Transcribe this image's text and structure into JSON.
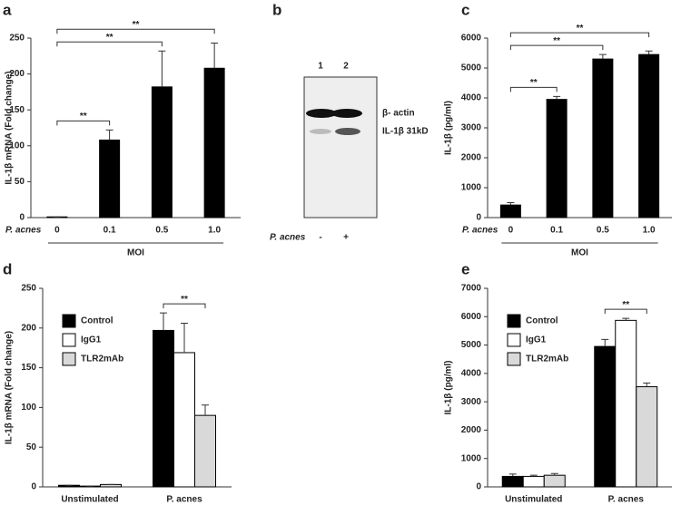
{
  "chart_data": [
    {
      "type": "bar",
      "label": "a",
      "ylabel": "IL-1β mRNA (Fold change)",
      "row_label": "P. acnes",
      "xlabel": "MOI",
      "categories": [
        "0",
        "0.1",
        "0.5",
        "1.0"
      ],
      "values": [
        1,
        108,
        182,
        208
      ],
      "errors": [
        0,
        14,
        50,
        35
      ],
      "color": "#000000",
      "ylim": [
        0,
        250
      ],
      "yticks": [
        0,
        50,
        100,
        150,
        200,
        250
      ],
      "annotations": [
        {
          "text": "**",
          "from": "0",
          "to": "0.1"
        },
        {
          "text": "**",
          "from": "0",
          "to": "0.5"
        },
        {
          "text": "**",
          "from": "0",
          "to": "1.0"
        }
      ]
    },
    {
      "type": "blot",
      "label": "b",
      "lanes": [
        "1",
        "2"
      ],
      "band_labels": [
        "β- actin",
        "IL-1β 31kD"
      ],
      "row_label": "P. acnes",
      "lane_values": [
        "-",
        "+"
      ]
    },
    {
      "type": "bar",
      "label": "c",
      "ylabel": "IL-1β (pg/ml)",
      "row_label": "P. acnes",
      "xlabel": "MOI",
      "categories": [
        "0",
        "0.1",
        "0.5",
        "1.0"
      ],
      "values": [
        420,
        3950,
        5300,
        5450
      ],
      "errors": [
        80,
        100,
        150,
        120
      ],
      "color": "#000000",
      "ylim": [
        0,
        6000
      ],
      "yticks": [
        0,
        1000,
        2000,
        3000,
        4000,
        5000,
        6000
      ],
      "annotations": [
        {
          "text": "**",
          "from": "0",
          "to": "0.1"
        },
        {
          "text": "**",
          "from": "0",
          "to": "0.5"
        },
        {
          "text": "**",
          "from": "0",
          "to": "1.0"
        }
      ]
    },
    {
      "type": "bar",
      "label": "d",
      "ylabel": "IL-1β mRNA (Fold change)",
      "categories": [
        "Unstimulated",
        "P. acnes"
      ],
      "series": [
        {
          "name": "Control",
          "color": "#000000",
          "values": [
            2,
            197
          ],
          "errors": [
            0,
            22
          ]
        },
        {
          "name": "IgG1",
          "color": "#ffffff",
          "values": [
            1,
            169
          ],
          "errors": [
            0,
            37
          ]
        },
        {
          "name": "TLR2mAb",
          "color": "#d9d9d9",
          "values": [
            3,
            90
          ],
          "errors": [
            0,
            13
          ]
        }
      ],
      "legend": "upper left",
      "ylim": [
        0,
        250
      ],
      "yticks": [
        0,
        50,
        100,
        150,
        200,
        250
      ],
      "annotations": [
        {
          "text": "**",
          "category": "P. acnes",
          "from": "Control",
          "to": "TLR2mAb"
        }
      ]
    },
    {
      "type": "bar",
      "label": "e",
      "ylabel": "IL-1β (pg/ml)",
      "categories": [
        "Unstimulated",
        "P. acnes"
      ],
      "series": [
        {
          "name": "Control",
          "color": "#000000",
          "values": [
            370,
            4950
          ],
          "errors": [
            80,
            250
          ]
        },
        {
          "name": "IgG1",
          "color": "#ffffff",
          "values": [
            370,
            5870
          ],
          "errors": [
            40,
            70
          ]
        },
        {
          "name": "TLR2mAb",
          "color": "#d9d9d9",
          "values": [
            410,
            3530
          ],
          "errors": [
            60,
            130
          ]
        }
      ],
      "legend": "upper left",
      "ylim": [
        0,
        7000
      ],
      "yticks": [
        0,
        1000,
        2000,
        3000,
        4000,
        5000,
        6000,
        7000
      ],
      "annotations": [
        {
          "text": "**",
          "category": "P. acnes",
          "from": "Control",
          "to": "TLR2mAb"
        }
      ]
    }
  ]
}
